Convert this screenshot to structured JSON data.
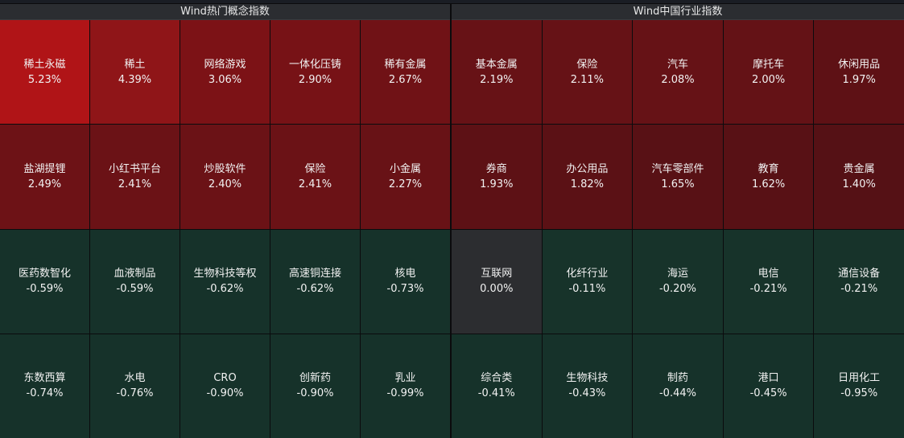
{
  "left_panel": {
    "title": "Wind热门概念指数",
    "cells": [
      {
        "name": "稀土永磁",
        "pct": "5.23%",
        "color": "#b01417"
      },
      {
        "name": "稀土",
        "pct": "4.39%",
        "color": "#8f1518"
      },
      {
        "name": "网络游戏",
        "pct": "3.06%",
        "color": "#7c1216"
      },
      {
        "name": "一体化压铸",
        "pct": "2.90%",
        "color": "#771216"
      },
      {
        "name": "稀有金属",
        "pct": "2.67%",
        "color": "#701216"
      },
      {
        "name": "盐湖提锂",
        "pct": "2.49%",
        "color": "#6d1216"
      },
      {
        "name": "小红书平台",
        "pct": "2.41%",
        "color": "#6b1216"
      },
      {
        "name": "炒股软件",
        "pct": "2.40%",
        "color": "#6b1216"
      },
      {
        "name": "保险",
        "pct": "2.41%",
        "color": "#6b1216"
      },
      {
        "name": "小金属",
        "pct": "2.27%",
        "color": "#681216"
      },
      {
        "name": "医药数智化",
        "pct": "-0.59%",
        "color": "#16322a"
      },
      {
        "name": "血液制品",
        "pct": "-0.59%",
        "color": "#16322a"
      },
      {
        "name": "生物科技等权",
        "pct": "-0.62%",
        "color": "#16322a"
      },
      {
        "name": "高速铜连接",
        "pct": "-0.62%",
        "color": "#16322a"
      },
      {
        "name": "核电",
        "pct": "-0.73%",
        "color": "#16322a"
      },
      {
        "name": "东数西算",
        "pct": "-0.74%",
        "color": "#16322a"
      },
      {
        "name": "水电",
        "pct": "-0.76%",
        "color": "#16322a"
      },
      {
        "name": "CRO",
        "pct": "-0.90%",
        "color": "#16322a"
      },
      {
        "name": "创新药",
        "pct": "-0.90%",
        "color": "#16322a"
      },
      {
        "name": "乳业",
        "pct": "-0.99%",
        "color": "#16322a"
      }
    ]
  },
  "right_panel": {
    "title": "Wind中国行业指数",
    "cells": [
      {
        "name": "基本金属",
        "pct": "2.19%",
        "color": "#671216"
      },
      {
        "name": "保险",
        "pct": "2.11%",
        "color": "#661216"
      },
      {
        "name": "汽车",
        "pct": "2.08%",
        "color": "#661216"
      },
      {
        "name": "摩托车",
        "pct": "2.00%",
        "color": "#641216"
      },
      {
        "name": "休闲用品",
        "pct": "1.97%",
        "color": "#5e1115"
      },
      {
        "name": "券商",
        "pct": "1.93%",
        "color": "#5d1115"
      },
      {
        "name": "办公用品",
        "pct": "1.82%",
        "color": "#5b1115"
      },
      {
        "name": "汽车零部件",
        "pct": "1.65%",
        "color": "#581115"
      },
      {
        "name": "教育",
        "pct": "1.62%",
        "color": "#581115"
      },
      {
        "name": "贵金属",
        "pct": "1.40%",
        "color": "#551115"
      },
      {
        "name": "互联网",
        "pct": "0.00%",
        "color": "#2c2d30"
      },
      {
        "name": "化纤行业",
        "pct": "-0.11%",
        "color": "#17332a"
      },
      {
        "name": "海运",
        "pct": "-0.20%",
        "color": "#17332a"
      },
      {
        "name": "电信",
        "pct": "-0.21%",
        "color": "#17332a"
      },
      {
        "name": "通信设备",
        "pct": "-0.21%",
        "color": "#17332a"
      },
      {
        "name": "综合类",
        "pct": "-0.41%",
        "color": "#16322a"
      },
      {
        "name": "生物科技",
        "pct": "-0.43%",
        "color": "#16322a"
      },
      {
        "name": "制药",
        "pct": "-0.44%",
        "color": "#16322a"
      },
      {
        "name": "港口",
        "pct": "-0.45%",
        "color": "#16322a"
      },
      {
        "name": "日用化工",
        "pct": "-0.95%",
        "color": "#16322a"
      }
    ]
  }
}
